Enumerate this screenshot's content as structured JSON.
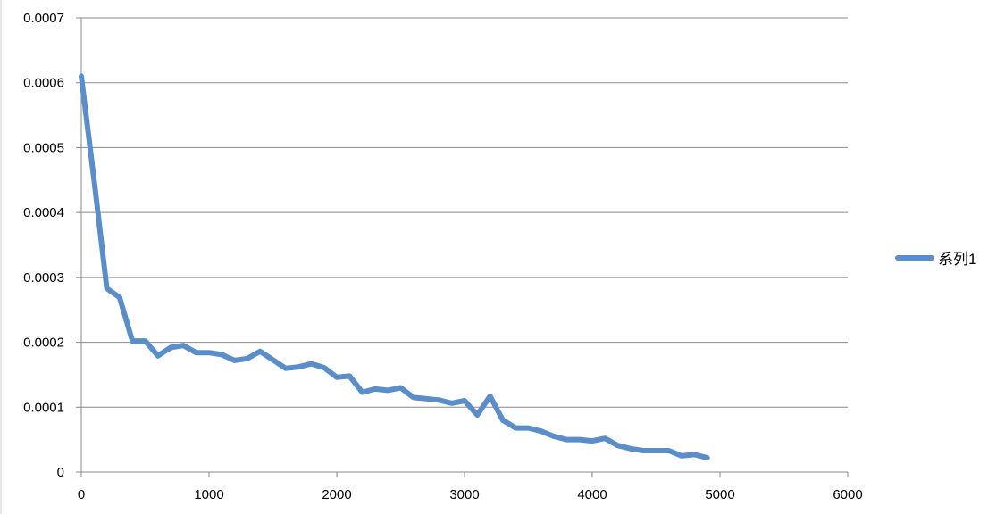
{
  "chart_data": {
    "type": "line",
    "title": "",
    "xlabel": "",
    "ylabel": "",
    "xlim": [
      0,
      6000
    ],
    "ylim": [
      0,
      0.0007
    ],
    "x_ticks": [
      "0",
      "1000",
      "2000",
      "3000",
      "4000",
      "5000",
      "6000"
    ],
    "y_ticks": [
      "0",
      "0.0001",
      "0.0002",
      "0.0003",
      "0.0004",
      "0.0005",
      "0.0006",
      "0.0007"
    ],
    "grid": true,
    "legend_position": "right",
    "series": [
      {
        "name": "系列1",
        "color": "#5b8ec9",
        "x": [
          0,
          100,
          200,
          300,
          400,
          500,
          600,
          700,
          800,
          900,
          1000,
          1100,
          1200,
          1300,
          1400,
          1500,
          1600,
          1700,
          1800,
          1900,
          2000,
          2100,
          2200,
          2300,
          2400,
          2500,
          2600,
          2700,
          2800,
          2900,
          3000,
          3100,
          3200,
          3300,
          3400,
          3500,
          3600,
          3700,
          3800,
          3900,
          4000,
          4100,
          4200,
          4300,
          4400,
          4500,
          4600,
          4700,
          4800,
          4900
        ],
        "y": [
          0.00061,
          0.00045,
          0.000283,
          0.000269,
          0.000202,
          0.000202,
          0.000179,
          0.000192,
          0.000195,
          0.000184,
          0.000184,
          0.000181,
          0.000172,
          0.000175,
          0.000186,
          0.000173,
          0.00016,
          0.000162,
          0.000167,
          0.000161,
          0.000146,
          0.000148,
          0.000123,
          0.000128,
          0.000126,
          0.00013,
          0.000115,
          0.000113,
          0.000111,
          0.000106,
          0.00011,
          8.8e-05,
          0.000117,
          8e-05,
          6.8e-05,
          6.8e-05,
          6.3e-05,
          5.5e-05,
          5e-05,
          5e-05,
          4.8e-05,
          5.2e-05,
          4.1e-05,
          3.6e-05,
          3.3e-05,
          3.3e-05,
          3.3e-05,
          2.5e-05,
          2.7e-05,
          2.2e-05
        ]
      }
    ]
  }
}
